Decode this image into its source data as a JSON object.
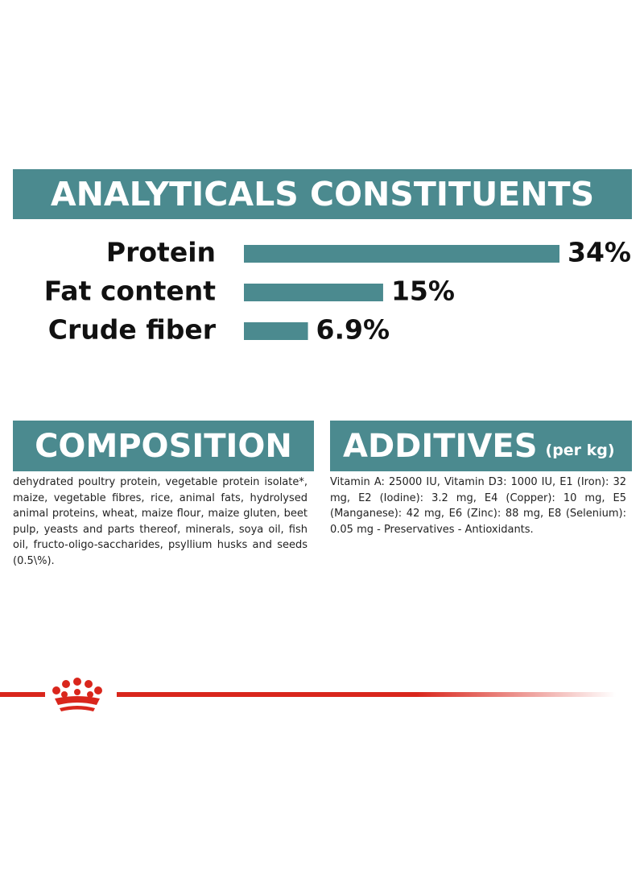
{
  "header": {
    "title": "ANALYTICALS CONSTITUENTS"
  },
  "chart_data": {
    "type": "bar",
    "categories": [
      "Protein",
      "Fat content",
      "Crude fiber"
    ],
    "values": [
      34,
      15,
      6.9
    ],
    "value_labels": [
      "34%",
      "15%",
      "6.9%"
    ],
    "color": "#4b8a8f"
  },
  "composition": {
    "title": "COMPOSITION",
    "text": "dehydrated poultry protein, vegetable protein isolate*, maize, vegetable fibres, rice, animal fats, hydrolysed animal proteins, wheat, maize flour, maize gluten, beet pulp, yeasts and parts thereof, minerals, soya oil, fish oil, fructo-oligo-saccharides, psyllium husks and seeds (0.5\\%)."
  },
  "additives": {
    "title": "ADDITIVES",
    "unit": "(per kg)",
    "text": "Vitamin A: 25000 IU, Vitamin D3: 1000 IU, E1 (Iron): 32 mg, E2 (Iodine): 3.2 mg, E4 (Copper): 10 mg, E5 (Manganese): 42 mg, E6 (Zinc): 88 mg, E8 (Selenium): 0.05 mg - Preservatives - Antioxidants."
  }
}
